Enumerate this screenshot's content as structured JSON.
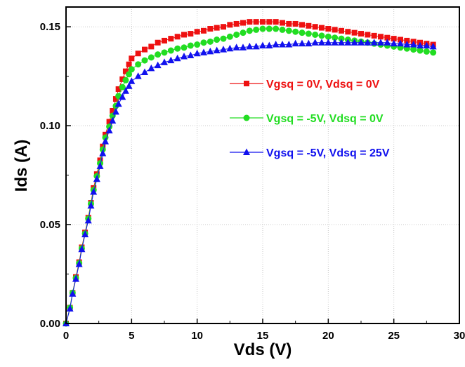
{
  "chart_data": {
    "type": "scatter",
    "xlabel": "Vds (V)",
    "ylabel": "Ids (A)",
    "xlim": [
      0,
      30
    ],
    "ylim": [
      0,
      0.16
    ],
    "xticks": [
      "0",
      "5",
      "10",
      "15",
      "20",
      "25",
      "30"
    ],
    "yticks": [
      "0.00",
      "0.05",
      "0.10",
      "0.15"
    ],
    "grid": true,
    "legend_position": "right-middle",
    "series": [
      {
        "name": "Vgsq = 0V, Vdsq = 0V",
        "color": "#ee1111",
        "marker": "square",
        "points": [
          [
            0.0,
            0.0
          ],
          [
            0.3,
            0.008
          ],
          [
            0.5,
            0.0155
          ],
          [
            0.75,
            0.0235
          ],
          [
            1.0,
            0.031
          ],
          [
            1.2,
            0.0385
          ],
          [
            1.45,
            0.046
          ],
          [
            1.7,
            0.0535
          ],
          [
            1.9,
            0.061
          ],
          [
            2.1,
            0.0685
          ],
          [
            2.35,
            0.0755
          ],
          [
            2.6,
            0.0825
          ],
          [
            2.8,
            0.0895
          ],
          [
            3.0,
            0.0955
          ],
          [
            3.3,
            0.102
          ],
          [
            3.55,
            0.1075
          ],
          [
            3.8,
            0.1135
          ],
          [
            4.0,
            0.1185
          ],
          [
            4.3,
            0.1235
          ],
          [
            4.55,
            0.1275
          ],
          [
            4.8,
            0.131
          ],
          [
            5.0,
            0.134
          ],
          [
            5.5,
            0.1365
          ],
          [
            6.0,
            0.1385
          ],
          [
            6.5,
            0.14
          ],
          [
            7.0,
            0.142
          ],
          [
            7.5,
            0.143
          ],
          [
            8.0,
            0.144
          ],
          [
            8.5,
            0.145
          ],
          [
            9.0,
            0.146
          ],
          [
            9.5,
            0.1465
          ],
          [
            10.0,
            0.1475
          ],
          [
            10.5,
            0.148
          ],
          [
            11.0,
            0.149
          ],
          [
            11.5,
            0.1495
          ],
          [
            12.0,
            0.15
          ],
          [
            12.5,
            0.151
          ],
          [
            13.0,
            0.1515
          ],
          [
            13.5,
            0.152
          ],
          [
            14.0,
            0.1525
          ],
          [
            14.5,
            0.1525
          ],
          [
            15.0,
            0.1525
          ],
          [
            15.5,
            0.1525
          ],
          [
            16.0,
            0.1525
          ],
          [
            16.5,
            0.152
          ],
          [
            17.0,
            0.1515
          ],
          [
            17.5,
            0.1515
          ],
          [
            18.0,
            0.151
          ],
          [
            18.5,
            0.1505
          ],
          [
            19.0,
            0.15
          ],
          [
            19.5,
            0.1495
          ],
          [
            20.0,
            0.149
          ],
          [
            20.5,
            0.1485
          ],
          [
            21.0,
            0.148
          ],
          [
            21.5,
            0.1475
          ],
          [
            22.0,
            0.147
          ],
          [
            22.5,
            0.1465
          ],
          [
            23.0,
            0.146
          ],
          [
            23.5,
            0.1455
          ],
          [
            24.0,
            0.145
          ],
          [
            24.5,
            0.1445
          ],
          [
            25.0,
            0.144
          ],
          [
            25.5,
            0.1435
          ],
          [
            26.0,
            0.143
          ],
          [
            26.5,
            0.1425
          ],
          [
            27.0,
            0.142
          ],
          [
            27.5,
            0.1415
          ],
          [
            28.0,
            0.141
          ]
        ]
      },
      {
        "name": "Vgsq = -5V, Vdsq = 0V",
        "color": "#22dd22",
        "marker": "circle",
        "points": [
          [
            0.0,
            0.0
          ],
          [
            0.3,
            0.008
          ],
          [
            0.5,
            0.0155
          ],
          [
            0.75,
            0.023
          ],
          [
            1.0,
            0.0305
          ],
          [
            1.2,
            0.038
          ],
          [
            1.45,
            0.0455
          ],
          [
            1.7,
            0.053
          ],
          [
            1.9,
            0.0605
          ],
          [
            2.1,
            0.0675
          ],
          [
            2.35,
            0.0745
          ],
          [
            2.6,
            0.081
          ],
          [
            2.8,
            0.088
          ],
          [
            3.0,
            0.094
          ],
          [
            3.3,
            0.0995
          ],
          [
            3.55,
            0.105
          ],
          [
            3.8,
            0.11
          ],
          [
            4.0,
            0.115
          ],
          [
            4.3,
            0.1195
          ],
          [
            4.55,
            0.123
          ],
          [
            4.8,
            0.126
          ],
          [
            5.0,
            0.1285
          ],
          [
            5.5,
            0.131
          ],
          [
            6.0,
            0.133
          ],
          [
            6.5,
            0.1345
          ],
          [
            7.0,
            0.136
          ],
          [
            7.5,
            0.137
          ],
          [
            8.0,
            0.138
          ],
          [
            8.5,
            0.139
          ],
          [
            9.0,
            0.1395
          ],
          [
            9.5,
            0.1405
          ],
          [
            10.0,
            0.141
          ],
          [
            10.5,
            0.142
          ],
          [
            11.0,
            0.1425
          ],
          [
            11.5,
            0.1435
          ],
          [
            12.0,
            0.144
          ],
          [
            12.5,
            0.145
          ],
          [
            13.0,
            0.146
          ],
          [
            13.5,
            0.147
          ],
          [
            14.0,
            0.148
          ],
          [
            14.5,
            0.1485
          ],
          [
            15.0,
            0.149
          ],
          [
            15.5,
            0.149
          ],
          [
            16.0,
            0.149
          ],
          [
            16.5,
            0.1485
          ],
          [
            17.0,
            0.148
          ],
          [
            17.5,
            0.1475
          ],
          [
            18.0,
            0.147
          ],
          [
            18.5,
            0.1465
          ],
          [
            19.0,
            0.146
          ],
          [
            19.5,
            0.1455
          ],
          [
            20.0,
            0.145
          ],
          [
            20.5,
            0.1445
          ],
          [
            21.0,
            0.144
          ],
          [
            21.5,
            0.1435
          ],
          [
            22.0,
            0.143
          ],
          [
            22.5,
            0.1425
          ],
          [
            23.0,
            0.142
          ],
          [
            23.5,
            0.1415
          ],
          [
            24.0,
            0.141
          ],
          [
            24.5,
            0.1405
          ],
          [
            25.0,
            0.14
          ],
          [
            25.5,
            0.1395
          ],
          [
            26.0,
            0.139
          ],
          [
            26.5,
            0.1385
          ],
          [
            27.0,
            0.138
          ],
          [
            27.5,
            0.1375
          ],
          [
            28.0,
            0.137
          ]
        ]
      },
      {
        "name": "Vgsq = -5V, Vdsq = 25V",
        "color": "#1111ee",
        "marker": "triangle",
        "points": [
          [
            0.0,
            0.0
          ],
          [
            0.3,
            0.0075
          ],
          [
            0.5,
            0.015
          ],
          [
            0.75,
            0.0225
          ],
          [
            1.0,
            0.03
          ],
          [
            1.2,
            0.0375
          ],
          [
            1.45,
            0.045
          ],
          [
            1.7,
            0.052
          ],
          [
            1.9,
            0.0595
          ],
          [
            2.1,
            0.0665
          ],
          [
            2.35,
            0.073
          ],
          [
            2.6,
            0.0795
          ],
          [
            2.8,
            0.086
          ],
          [
            3.0,
            0.092
          ],
          [
            3.3,
            0.0975
          ],
          [
            3.55,
            0.1025
          ],
          [
            3.8,
            0.107
          ],
          [
            4.0,
            0.111
          ],
          [
            4.3,
            0.1145
          ],
          [
            4.55,
            0.1175
          ],
          [
            4.8,
            0.12
          ],
          [
            5.0,
            0.1225
          ],
          [
            5.5,
            0.125
          ],
          [
            6.0,
            0.127
          ],
          [
            6.5,
            0.129
          ],
          [
            7.0,
            0.1305
          ],
          [
            7.5,
            0.132
          ],
          [
            8.0,
            0.133
          ],
          [
            8.5,
            0.134
          ],
          [
            9.0,
            0.135
          ],
          [
            9.5,
            0.1355
          ],
          [
            10.0,
            0.1365
          ],
          [
            10.5,
            0.137
          ],
          [
            11.0,
            0.1375
          ],
          [
            11.5,
            0.138
          ],
          [
            12.0,
            0.1385
          ],
          [
            12.5,
            0.139
          ],
          [
            13.0,
            0.1395
          ],
          [
            13.5,
            0.1395
          ],
          [
            14.0,
            0.14
          ],
          [
            14.5,
            0.14
          ],
          [
            15.0,
            0.1405
          ],
          [
            15.5,
            0.1405
          ],
          [
            16.0,
            0.141
          ],
          [
            16.5,
            0.141
          ],
          [
            17.0,
            0.141
          ],
          [
            17.5,
            0.1415
          ],
          [
            18.0,
            0.1415
          ],
          [
            18.5,
            0.1415
          ],
          [
            19.0,
            0.142
          ],
          [
            19.5,
            0.142
          ],
          [
            20.0,
            0.142
          ],
          [
            20.5,
            0.142
          ],
          [
            21.0,
            0.142
          ],
          [
            21.5,
            0.142
          ],
          [
            22.0,
            0.142
          ],
          [
            22.5,
            0.142
          ],
          [
            23.0,
            0.142
          ],
          [
            23.5,
            0.142
          ],
          [
            24.0,
            0.142
          ],
          [
            24.5,
            0.142
          ],
          [
            25.0,
            0.1415
          ],
          [
            25.5,
            0.1415
          ],
          [
            26.0,
            0.141
          ],
          [
            26.5,
            0.141
          ],
          [
            27.0,
            0.1405
          ],
          [
            27.5,
            0.1405
          ],
          [
            28.0,
            0.14
          ]
        ]
      }
    ]
  }
}
